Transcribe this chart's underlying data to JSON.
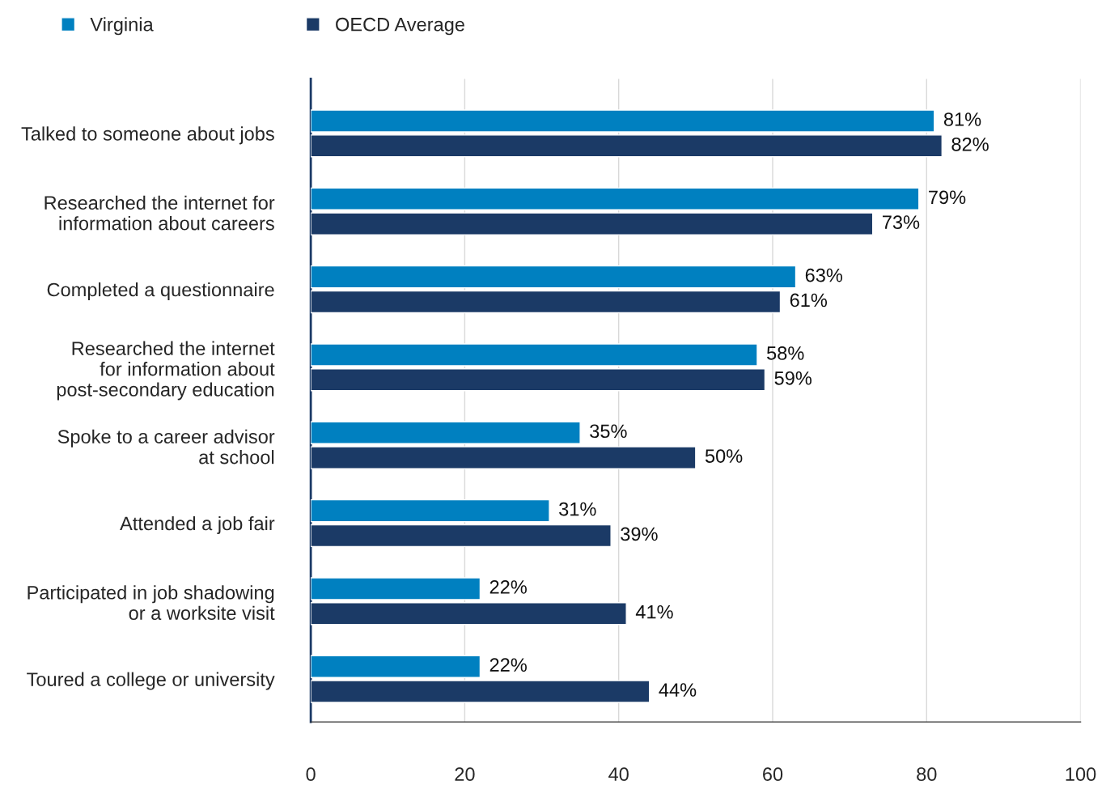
{
  "chart_data": {
    "type": "bar",
    "orientation": "horizontal",
    "categories": [
      "Talked to someone about jobs",
      "Researched the internet for\ninformation about careers",
      "Completed a questionnaire",
      "Researched the internet\nfor information about\npost-secondary education",
      "Spoke to a career advisor\nat school",
      "Attended a job fair",
      "Participated in job shadowing\nor a worksite visit",
      "Toured a college or university"
    ],
    "series": [
      {
        "name": "Virginia",
        "color": "#0080c0",
        "values": [
          81,
          79,
          63,
          58,
          35,
          31,
          22,
          22
        ],
        "value_labels": [
          "81%",
          "79%",
          "63%",
          "58%",
          "35%",
          "31%",
          "22%",
          "22%"
        ]
      },
      {
        "name": "OECD Average",
        "color": "#1b3a66",
        "values": [
          82,
          73,
          61,
          59,
          50,
          39,
          41,
          44
        ],
        "value_labels": [
          "82%",
          "73%",
          "61%",
          "59%",
          "50%",
          "39%",
          "41%",
          "44%"
        ]
      }
    ],
    "xlim": [
      0,
      100
    ],
    "xticks": [
      0,
      20,
      40,
      60,
      80,
      100
    ],
    "grid": "x",
    "legend": "top left"
  }
}
